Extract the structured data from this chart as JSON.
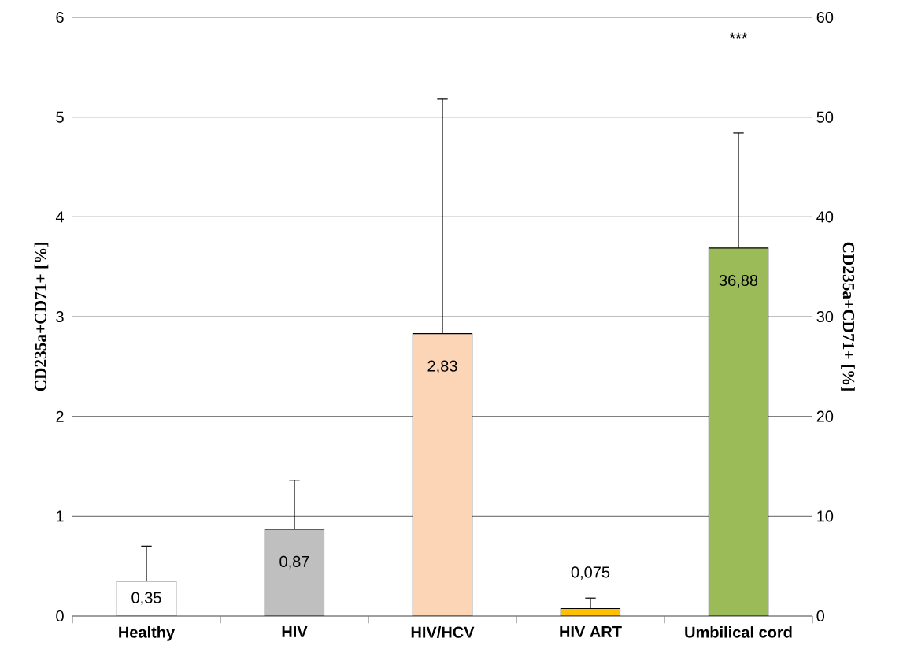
{
  "chart_data": {
    "type": "bar",
    "categories": [
      "Healthy",
      "HIV",
      "HIV/HCV",
      "HIV ART",
      "Umbilical cord"
    ],
    "series": [
      {
        "values": [
          0.35,
          0.87,
          2.83,
          0.075,
          null
        ],
        "colors": [
          "#ffffff",
          "#bfbfbf",
          "#fbd5b5",
          "#ffc000",
          null
        ],
        "errors": [
          [
            0.35,
            0.7
          ],
          [
            0.87,
            1.36
          ],
          [
            2.83,
            5.18
          ],
          [
            0.075,
            0.18
          ],
          null
        ],
        "value_labels": [
          "0,35",
          "0,87",
          "2,83",
          "0,075",
          null
        ]
      },
      {
        "axis": "y2",
        "values": [
          null,
          null,
          null,
          null,
          36.88
        ],
        "colors": [
          null,
          null,
          null,
          null,
          "#9bbb59"
        ],
        "errors": [
          null,
          null,
          null,
          null,
          [
            36.88,
            48.4
          ]
        ],
        "value_labels": [
          null,
          null,
          null,
          null,
          "36,88"
        ]
      }
    ],
    "ylabel": "CD235a+CD71+ [%]",
    "y2label": "CD235a+CD71+ [%]",
    "ylim": [
      0,
      6
    ],
    "yticks": [
      0,
      1,
      2,
      3,
      4,
      5,
      6
    ],
    "y2lim": [
      0,
      60
    ],
    "y2ticks": [
      0,
      10,
      20,
      30,
      40,
      50,
      60
    ],
    "grid": "y",
    "annotations": [
      "***"
    ]
  }
}
